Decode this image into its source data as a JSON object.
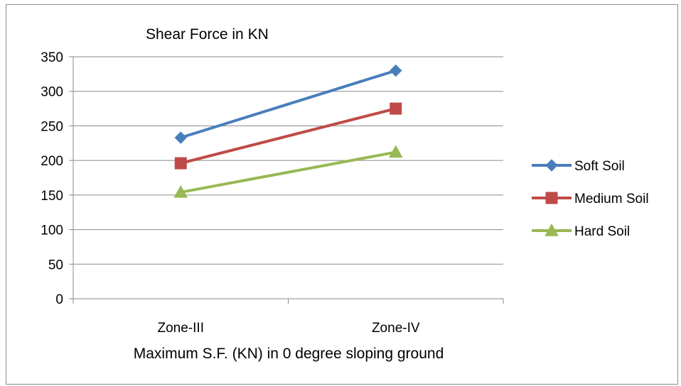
{
  "chart_data": {
    "type": "line",
    "title": "Shear Force in KN",
    "xlabel": "Maximum S.F. (KN) in 0 degree sloping ground",
    "ylabel": "",
    "categories": [
      "Zone-III",
      "Zone-IV"
    ],
    "ylim": [
      0,
      350
    ],
    "yticks": [
      0,
      50,
      100,
      150,
      200,
      250,
      300,
      350
    ],
    "grid": true,
    "legend_position": "right",
    "series": [
      {
        "name": "Soft Soil",
        "values": [
          233,
          330
        ],
        "color": "#4a7ebb",
        "marker": "diamond"
      },
      {
        "name": "Medium Soil",
        "values": [
          196,
          275
        ],
        "color": "#be4b48",
        "marker": "square"
      },
      {
        "name": "Hard Soil",
        "values": [
          154,
          212
        ],
        "color": "#98b954",
        "marker": "triangle"
      }
    ]
  }
}
